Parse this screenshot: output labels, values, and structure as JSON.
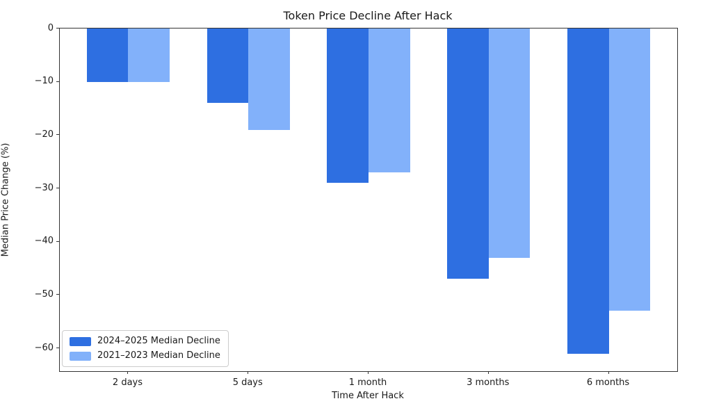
{
  "chart_data": {
    "type": "bar",
    "title": "Token Price Decline After Hack",
    "xlabel": "Time After Hack",
    "ylabel": "Median Price Change (%)",
    "categories": [
      "2 days",
      "5 days",
      "1 month",
      "3 months",
      "6 months"
    ],
    "series": [
      {
        "name": "2024–2025 Median Decline",
        "color": "#2e6fe1",
        "values": [
          -10,
          -14,
          -29,
          -47,
          -61
        ]
      },
      {
        "name": "2021–2023 Median Decline",
        "color": "#82b1fa",
        "values": [
          -10,
          -19,
          -27,
          -43,
          -53
        ]
      }
    ],
    "ylim": [
      -64.3,
      0
    ],
    "yticks": [
      0,
      -10,
      -20,
      -30,
      -40,
      -50,
      -60
    ],
    "ytick_labels": [
      "0",
      "−10",
      "−20",
      "−30",
      "−40",
      "−50",
      "−60"
    ],
    "grid": false,
    "legend_position": "lower left",
    "bar_baseline": 0
  },
  "colors": {
    "spine": "#333333",
    "text": "#1a1a1a",
    "legend_border": "#cccccc",
    "background": "#ffffff"
  }
}
